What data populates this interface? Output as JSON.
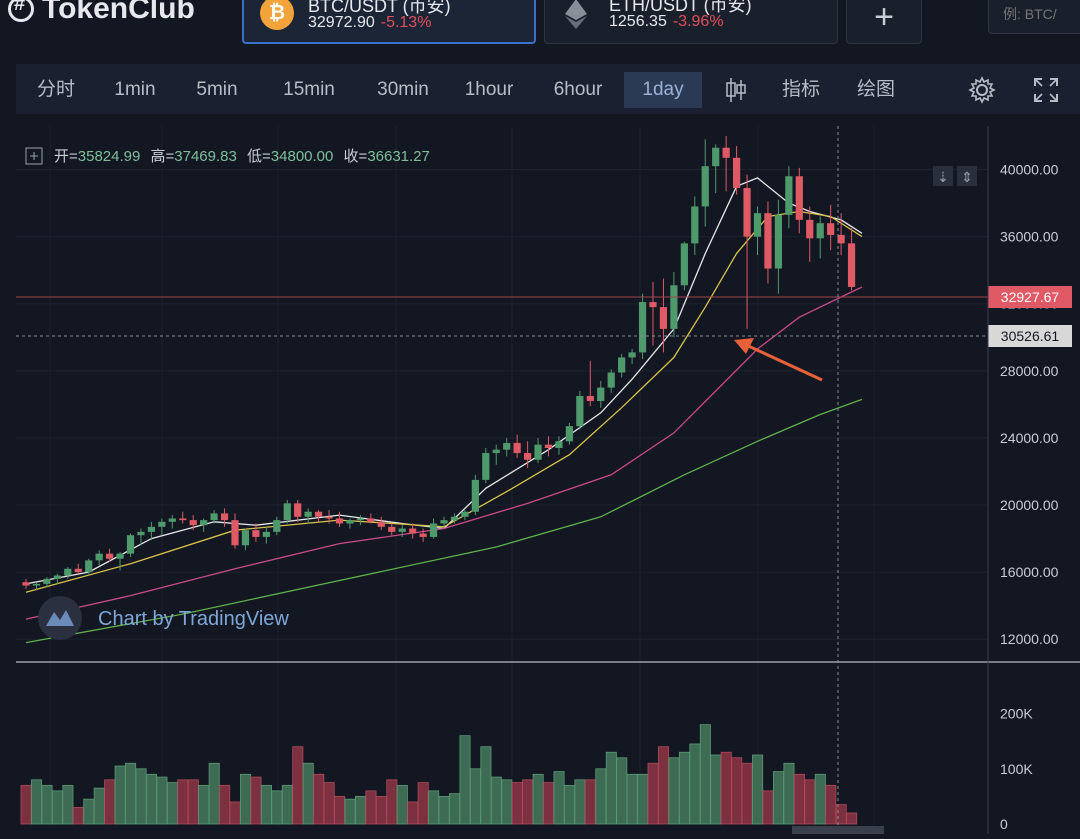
{
  "header": {
    "logo_text": "TokenClub",
    "cards": [
      {
        "name": "BTC/USDT (币安)",
        "price": "32972.90",
        "change": "-5.13%",
        "icon": "bitcoin-icon"
      },
      {
        "name": "ETH/USDT (币安)",
        "price": "1256.35",
        "change": "-3.96%",
        "icon": "ethereum-icon"
      }
    ],
    "add_label": "+",
    "search_placeholder": "例: BTC/"
  },
  "toolbar": {
    "intervals": [
      "分时",
      "1min",
      "5min",
      "15min",
      "30min",
      "1hour",
      "6hour",
      "1day"
    ],
    "active_interval": "1day",
    "indicators_label": "指标",
    "drawing_label": "绘图",
    "icons": [
      "candlestick-icon",
      "gear-icon",
      "fullscreen-icon"
    ]
  },
  "ohlc": {
    "open_label": "开=",
    "open": "35824.99",
    "high_label": "高=",
    "high": "37469.83",
    "low_label": "低=",
    "low": "34800.00",
    "close_label": "收=",
    "close": "36631.27"
  },
  "watermark": "Chart by TradingView",
  "price_labels": {
    "current": "32927.67",
    "crosshair": "30526.61"
  },
  "colors": {
    "up": "#4f9a6c",
    "down": "#e05a66",
    "bg": "#131722",
    "ma_fast": "#e8e8e8",
    "ma_mid": "#d9c24a",
    "ma_slow": "#c84a8a",
    "ma_long": "#5fb04a",
    "arrow": "#e8603a"
  },
  "chart_data": {
    "type": "candlestick",
    "ylim": [
      11000,
      42000
    ],
    "yticks": [
      "40000.00",
      "36000.00",
      "32000.00",
      "28000.00",
      "24000.00",
      "20000.00",
      "16000.00",
      "12000.00"
    ],
    "volume_ylim": [
      0,
      250000
    ],
    "volume_ticks": [
      "200K",
      "100K",
      "0"
    ],
    "candles": [
      [
        15400,
        15600,
        15000,
        15200
      ],
      [
        15200,
        15400,
        14900,
        15300
      ],
      [
        15300,
        15700,
        15100,
        15600
      ],
      [
        15600,
        15900,
        15300,
        15800
      ],
      [
        15800,
        16300,
        15600,
        16200
      ],
      [
        16200,
        16500,
        15900,
        16000
      ],
      [
        16000,
        16800,
        15900,
        16700
      ],
      [
        16700,
        17300,
        16400,
        17100
      ],
      [
        17100,
        17400,
        16600,
        16800
      ],
      [
        16800,
        17200,
        16100,
        17100
      ],
      [
        17100,
        18300,
        16900,
        18200
      ],
      [
        18200,
        18600,
        17600,
        18400
      ],
      [
        18400,
        19000,
        17900,
        18700
      ],
      [
        18700,
        19200,
        18200,
        19000
      ],
      [
        19000,
        19400,
        18600,
        19200
      ],
      [
        19200,
        19600,
        18900,
        19100
      ],
      [
        19100,
        19400,
        18500,
        18800
      ],
      [
        18800,
        19200,
        18400,
        19100
      ],
      [
        19100,
        19700,
        18900,
        19500
      ],
      [
        19500,
        19800,
        18700,
        19100
      ],
      [
        19100,
        19500,
        17400,
        17600
      ],
      [
        17600,
        18600,
        17300,
        18500
      ],
      [
        18500,
        18900,
        17800,
        18100
      ],
      [
        18100,
        18700,
        17700,
        18400
      ],
      [
        18400,
        19300,
        18200,
        19100
      ],
      [
        19100,
        20300,
        18900,
        20100
      ],
      [
        20100,
        20300,
        19000,
        19300
      ],
      [
        19300,
        19800,
        18900,
        19600
      ],
      [
        19600,
        19700,
        19000,
        19300
      ],
      [
        19300,
        19700,
        18900,
        19200
      ],
      [
        19200,
        19600,
        18700,
        18900
      ],
      [
        18900,
        19200,
        18600,
        19100
      ],
      [
        19100,
        19400,
        18800,
        19200
      ],
      [
        19200,
        19500,
        18900,
        19000
      ],
      [
        19000,
        19300,
        18500,
        18700
      ],
      [
        18700,
        18900,
        18200,
        18400
      ],
      [
        18400,
        18800,
        18100,
        18600
      ],
      [
        18600,
        18900,
        18000,
        18300
      ],
      [
        18300,
        18600,
        17800,
        18100
      ],
      [
        18100,
        19200,
        18000,
        18900
      ],
      [
        18900,
        19300,
        18700,
        19100
      ],
      [
        19100,
        19500,
        18900,
        19300
      ],
      [
        19300,
        19700,
        19100,
        19600
      ],
      [
        19600,
        21800,
        19400,
        21500
      ],
      [
        21500,
        23400,
        21300,
        23100
      ],
      [
        23100,
        23600,
        22400,
        23300
      ],
      [
        23300,
        24000,
        22900,
        23700
      ],
      [
        23700,
        24200,
        22800,
        23100
      ],
      [
        23100,
        23800,
        22200,
        22700
      ],
      [
        22700,
        24000,
        22500,
        23600
      ],
      [
        23600,
        24100,
        22900,
        23400
      ],
      [
        23400,
        24100,
        23000,
        23800
      ],
      [
        23800,
        24900,
        23600,
        24700
      ],
      [
        24700,
        26800,
        24500,
        26500
      ],
      [
        26500,
        28600,
        25900,
        26200
      ],
      [
        26200,
        27400,
        25800,
        27000
      ],
      [
        27000,
        28100,
        26700,
        27900
      ],
      [
        27900,
        29000,
        27600,
        28800
      ],
      [
        28800,
        29300,
        28400,
        29100
      ],
      [
        29100,
        32600,
        28700,
        32100
      ],
      [
        32100,
        33300,
        29500,
        31800
      ],
      [
        31800,
        33500,
        29100,
        30500
      ],
      [
        30500,
        33900,
        30000,
        33100
      ],
      [
        33100,
        35700,
        32800,
        35600
      ],
      [
        35600,
        38400,
        34900,
        37800
      ],
      [
        37800,
        41800,
        36600,
        40200
      ],
      [
        40200,
        41500,
        38600,
        41300
      ],
      [
        41300,
        42000,
        38700,
        40700
      ],
      [
        40700,
        41400,
        38500,
        38900
      ],
      [
        38900,
        39700,
        30500,
        36000
      ],
      [
        36000,
        37800,
        34900,
        37400
      ],
      [
        37400,
        38100,
        33200,
        34100
      ],
      [
        34100,
        38200,
        32600,
        37300
      ],
      [
        37300,
        40200,
        36500,
        39600
      ],
      [
        39600,
        40100,
        36200,
        37000
      ],
      [
        37000,
        37800,
        34500,
        35900
      ],
      [
        35900,
        37200,
        34700,
        36800
      ],
      [
        36800,
        37900,
        35200,
        36100
      ],
      [
        36100,
        37400,
        34900,
        35600
      ],
      [
        35600,
        36500,
        32800,
        33000
      ]
    ],
    "volume": [
      70000,
      80000,
      70000,
      60000,
      70000,
      30000,
      45000,
      65000,
      80000,
      105000,
      110000,
      100000,
      90000,
      85000,
      75000,
      80000,
      80000,
      70000,
      110000,
      70000,
      40000,
      90000,
      85000,
      70000,
      60000,
      70000,
      140000,
      110000,
      90000,
      75000,
      50000,
      45000,
      50000,
      60000,
      50000,
      80000,
      70000,
      40000,
      75000,
      60000,
      50000,
      55000,
      160000,
      100000,
      140000,
      85000,
      80000,
      75000,
      80000,
      90000,
      75000,
      95000,
      70000,
      80000,
      80000,
      100000,
      130000,
      120000,
      90000,
      90000,
      110000,
      140000,
      120000,
      130000,
      145000,
      180000,
      125000,
      130000,
      120000,
      110000,
      125000,
      60000,
      95000,
      110000,
      90000,
      80000,
      90000,
      70000,
      35000,
      20000
    ],
    "ma_fast": [
      [
        0,
        15300
      ],
      [
        6,
        16000
      ],
      [
        12,
        18000
      ],
      [
        18,
        19000
      ],
      [
        22,
        18800
      ],
      [
        30,
        19400
      ],
      [
        36,
        18900
      ],
      [
        40,
        18600
      ],
      [
        44,
        21000
      ],
      [
        50,
        23300
      ],
      [
        55,
        25500
      ],
      [
        58,
        27500
      ],
      [
        62,
        30500
      ],
      [
        65,
        35000
      ],
      [
        68,
        39000
      ],
      [
        70,
        39500
      ],
      [
        73,
        38000
      ],
      [
        75,
        37500
      ],
      [
        78,
        37000
      ],
      [
        80,
        36200
      ]
    ],
    "ma_mid": [
      [
        0,
        14800
      ],
      [
        10,
        16500
      ],
      [
        20,
        18500
      ],
      [
        30,
        19100
      ],
      [
        40,
        18700
      ],
      [
        46,
        20800
      ],
      [
        52,
        23000
      ],
      [
        57,
        25800
      ],
      [
        62,
        28800
      ],
      [
        65,
        31800
      ],
      [
        68,
        35000
      ],
      [
        71,
        37200
      ],
      [
        74,
        37500
      ],
      [
        77,
        37200
      ],
      [
        80,
        36000
      ]
    ],
    "ma_slow": [
      [
        0,
        13200
      ],
      [
        10,
        14600
      ],
      [
        20,
        16200
      ],
      [
        30,
        17700
      ],
      [
        40,
        18600
      ],
      [
        48,
        20100
      ],
      [
        56,
        21800
      ],
      [
        62,
        24300
      ],
      [
        66,
        26800
      ],
      [
        70,
        29300
      ],
      [
        74,
        31200
      ],
      [
        78,
        32400
      ],
      [
        80,
        33000
      ]
    ],
    "ma_long": [
      [
        0,
        11800
      ],
      [
        15,
        13500
      ],
      [
        30,
        15500
      ],
      [
        45,
        17500
      ],
      [
        55,
        19300
      ],
      [
        63,
        21800
      ],
      [
        70,
        23800
      ],
      [
        76,
        25400
      ],
      [
        80,
        26300
      ]
    ]
  }
}
